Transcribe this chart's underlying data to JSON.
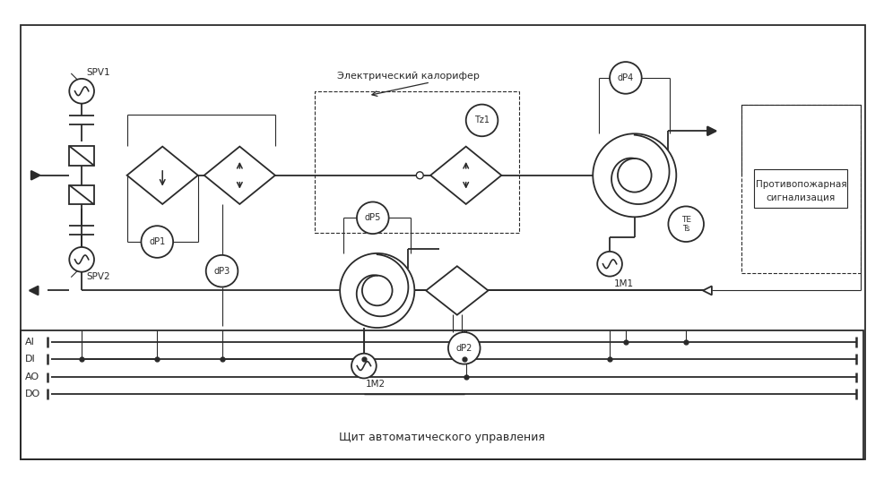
{
  "bg_color": "#ffffff",
  "line_color": "#2a2a2a",
  "lw": 1.3,
  "tlw": 0.8,
  "fig_width": 9.87,
  "fig_height": 5.45,
  "label_el_cal": "Электрический калорифер",
  "label_fire_line1": "Противопожарная",
  "label_fire_line2": "сигнализация",
  "bus_labels": [
    "AI",
    "DI",
    "AO",
    "DO"
  ],
  "bottom_label": "Щит автоматического управления",
  "SPV1": "SPV1",
  "SPV2": "SPV2",
  "dP1": "dP1",
  "dP2": "dP2",
  "dP3": "dP3",
  "dP4": "dP4",
  "dP5": "dP5",
  "Tz1": "Tz1",
  "TE_Ts": "TE\nTs",
  "M1": "1M1",
  "M2": "1M2"
}
